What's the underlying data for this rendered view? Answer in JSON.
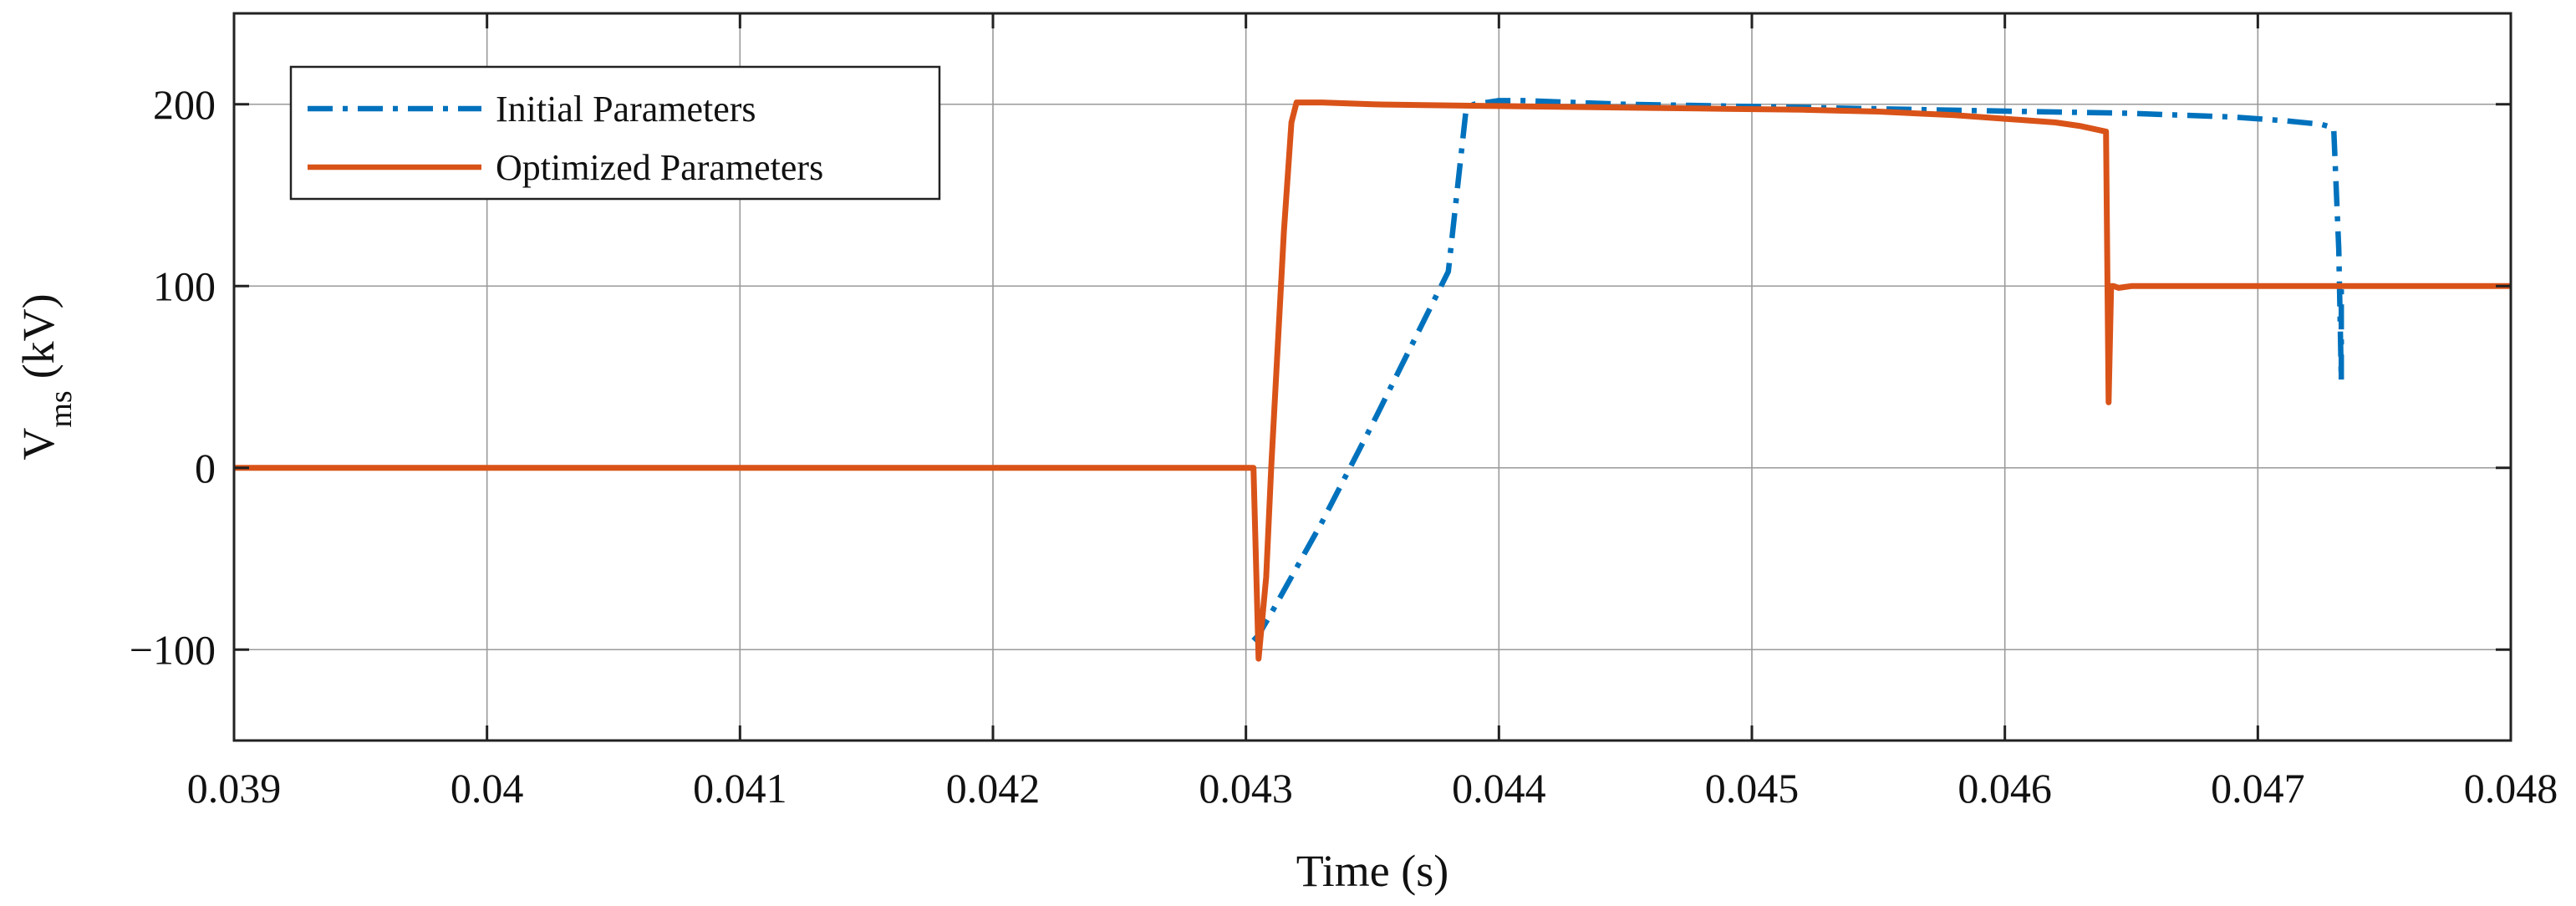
{
  "chart_data": {
    "type": "line",
    "title": "",
    "xlabel": "Time (s)",
    "ylabel": {
      "base": "V",
      "subscript": "ms",
      "unit": "(kV)"
    },
    "xlim": [
      0.039,
      0.048
    ],
    "ylim": [
      -150,
      250
    ],
    "xticks": [
      0.039,
      0.04,
      0.041,
      0.042,
      0.043,
      0.044,
      0.045,
      0.046,
      0.047,
      0.048
    ],
    "xtick_labels": [
      "0.039",
      "0.04",
      "0.041",
      "0.042",
      "0.043",
      "0.044",
      "0.045",
      "0.046",
      "0.047",
      "0.048"
    ],
    "yticks": [
      -100,
      0,
      100,
      200
    ],
    "ytick_labels": [
      "−100",
      "0",
      "100",
      "200"
    ],
    "grid": true,
    "legend_position": "top-left",
    "series": [
      {
        "name": "Initial Parameters",
        "style": "dash-dot",
        "color": "#0072BD",
        "x": [
          0.04303,
          0.04305,
          0.0431,
          0.0432,
          0.0433,
          0.0434,
          0.0435,
          0.0436,
          0.0437,
          0.0438,
          0.04387,
          0.0439,
          0.044,
          0.0441,
          0.0443,
          0.0445,
          0.0447,
          0.0449,
          0.0451,
          0.0453,
          0.0455,
          0.0457,
          0.0459,
          0.0461,
          0.0463,
          0.0465,
          0.0467,
          0.0469,
          0.0471,
          0.04725,
          0.0473,
          0.04732,
          0.04733,
          0.04733,
          0.04733
        ],
        "y": [
          -95,
          -92,
          -80,
          -55,
          -30,
          -3,
          24,
          52,
          80,
          108,
          197,
          200,
          202,
          202,
          201,
          200,
          199.5,
          199,
          198.5,
          198,
          197.5,
          197,
          196.5,
          196,
          195.5,
          195,
          194,
          193,
          191,
          189,
          187,
          120,
          48,
          100,
          100
        ]
      },
      {
        "name": "Optimized Parameters",
        "style": "solid",
        "color": "#D95319",
        "x": [
          0.039,
          0.043,
          0.04303,
          0.04305,
          0.04308,
          0.0431,
          0.04315,
          0.04318,
          0.0432,
          0.0433,
          0.0435,
          0.0437,
          0.044,
          0.0443,
          0.0446,
          0.0449,
          0.0452,
          0.0455,
          0.0458,
          0.046,
          0.0462,
          0.0463,
          0.0464,
          0.04641,
          0.04642,
          0.04643,
          0.04645,
          0.0465,
          0.048
        ],
        "y": [
          0,
          0,
          0,
          -105,
          -60,
          0,
          130,
          190,
          201,
          201,
          200,
          199.5,
          199,
          198.5,
          198,
          197.5,
          197,
          196,
          194,
          192,
          190,
          188,
          185,
          36,
          100,
          100,
          99,
          100,
          100
        ]
      }
    ]
  }
}
